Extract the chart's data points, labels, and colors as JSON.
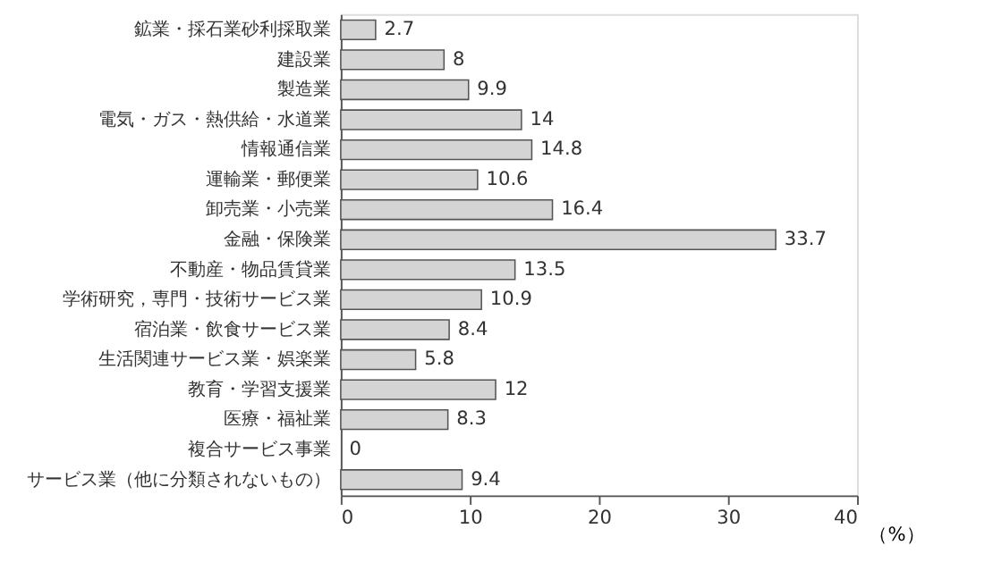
{
  "chart_data": {
    "type": "bar",
    "orientation": "horizontal",
    "xlabel": "（%）",
    "categories": [
      "鉱業・採石業砂利採取業",
      "建設業",
      "製造業",
      "電気・ガス・熱供給・水道業",
      "情報通信業",
      "運輸業・郵便業",
      "卸売業・小売業",
      "金融・保険業",
      "不動産・物品賃貸業",
      "学術研究，専門・技術サービス業",
      "宿泊業・飲食サービス業",
      "生活関連サービス業・娯楽業",
      "教育・学習支援業",
      "医療・福祉業",
      "複合サービス事業",
      "サービス業（他に分類されないもの）"
    ],
    "values": [
      2.7,
      8,
      9.9,
      14,
      14.8,
      10.6,
      16.4,
      33.7,
      13.5,
      10.9,
      8.4,
      5.8,
      12,
      8.3,
      0,
      9.4
    ],
    "color": "#d4d4d4",
    "xlim": [
      0,
      40
    ],
    "xticks": [
      0,
      10,
      20,
      30,
      40
    ],
    "grid": false,
    "data_labels": true
  }
}
